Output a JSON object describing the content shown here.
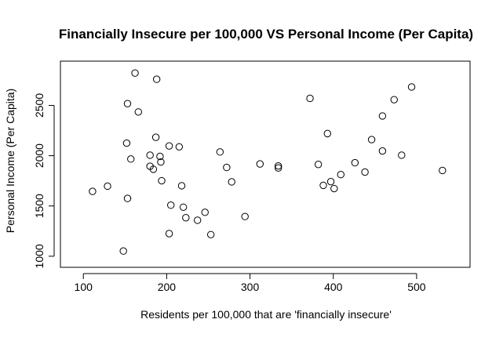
{
  "chart_data": {
    "type": "scatter",
    "title": "Financially Insecure per 100,000 VS Personal Income (Per Capita)",
    "xlabel": "Residents per 100,000 that are 'financially insecure'",
    "ylabel": "Personal Income (Per Capita)",
    "xlim": [
      80,
      550
    ],
    "ylim": [
      960,
      2870
    ],
    "x_ticks": [
      100,
      200,
      300,
      400,
      500
    ],
    "y_ticks": [
      1000,
      1500,
      2000,
      2500
    ],
    "grid": false,
    "marker": "open-circle",
    "colors": {
      "marker": "#000000",
      "axis": "#000000",
      "background": "#ffffff"
    },
    "points": [
      {
        "x": 111,
        "y": 1645
      },
      {
        "x": 129,
        "y": 1697
      },
      {
        "x": 148,
        "y": 1052
      },
      {
        "x": 152,
        "y": 2125
      },
      {
        "x": 153,
        "y": 1575
      },
      {
        "x": 153,
        "y": 2518
      },
      {
        "x": 157,
        "y": 1967
      },
      {
        "x": 162,
        "y": 2822
      },
      {
        "x": 166,
        "y": 2435
      },
      {
        "x": 180,
        "y": 1895
      },
      {
        "x": 180,
        "y": 2005
      },
      {
        "x": 184,
        "y": 1865
      },
      {
        "x": 187,
        "y": 2183
      },
      {
        "x": 188,
        "y": 2760
      },
      {
        "x": 192,
        "y": 1993
      },
      {
        "x": 193,
        "y": 1937
      },
      {
        "x": 194,
        "y": 1751
      },
      {
        "x": 203,
        "y": 2097
      },
      {
        "x": 203,
        "y": 1225
      },
      {
        "x": 205,
        "y": 1508
      },
      {
        "x": 215,
        "y": 2088
      },
      {
        "x": 218,
        "y": 1701
      },
      {
        "x": 220,
        "y": 1488
      },
      {
        "x": 223,
        "y": 1383
      },
      {
        "x": 237,
        "y": 1358
      },
      {
        "x": 246,
        "y": 1437
      },
      {
        "x": 253,
        "y": 1215
      },
      {
        "x": 264,
        "y": 2037
      },
      {
        "x": 272,
        "y": 1883
      },
      {
        "x": 278,
        "y": 1740
      },
      {
        "x": 294,
        "y": 1395
      },
      {
        "x": 312,
        "y": 1918
      },
      {
        "x": 334,
        "y": 1898
      },
      {
        "x": 334,
        "y": 1878
      },
      {
        "x": 372,
        "y": 2570
      },
      {
        "x": 382,
        "y": 1913
      },
      {
        "x": 388,
        "y": 1705
      },
      {
        "x": 393,
        "y": 2220
      },
      {
        "x": 397,
        "y": 1742
      },
      {
        "x": 401,
        "y": 1673
      },
      {
        "x": 409,
        "y": 1812
      },
      {
        "x": 426,
        "y": 1930
      },
      {
        "x": 438,
        "y": 1837
      },
      {
        "x": 446,
        "y": 2160
      },
      {
        "x": 459,
        "y": 2047
      },
      {
        "x": 459,
        "y": 2395
      },
      {
        "x": 473,
        "y": 2557
      },
      {
        "x": 482,
        "y": 2005
      },
      {
        "x": 494,
        "y": 2683
      },
      {
        "x": 531,
        "y": 1853
      }
    ]
  }
}
